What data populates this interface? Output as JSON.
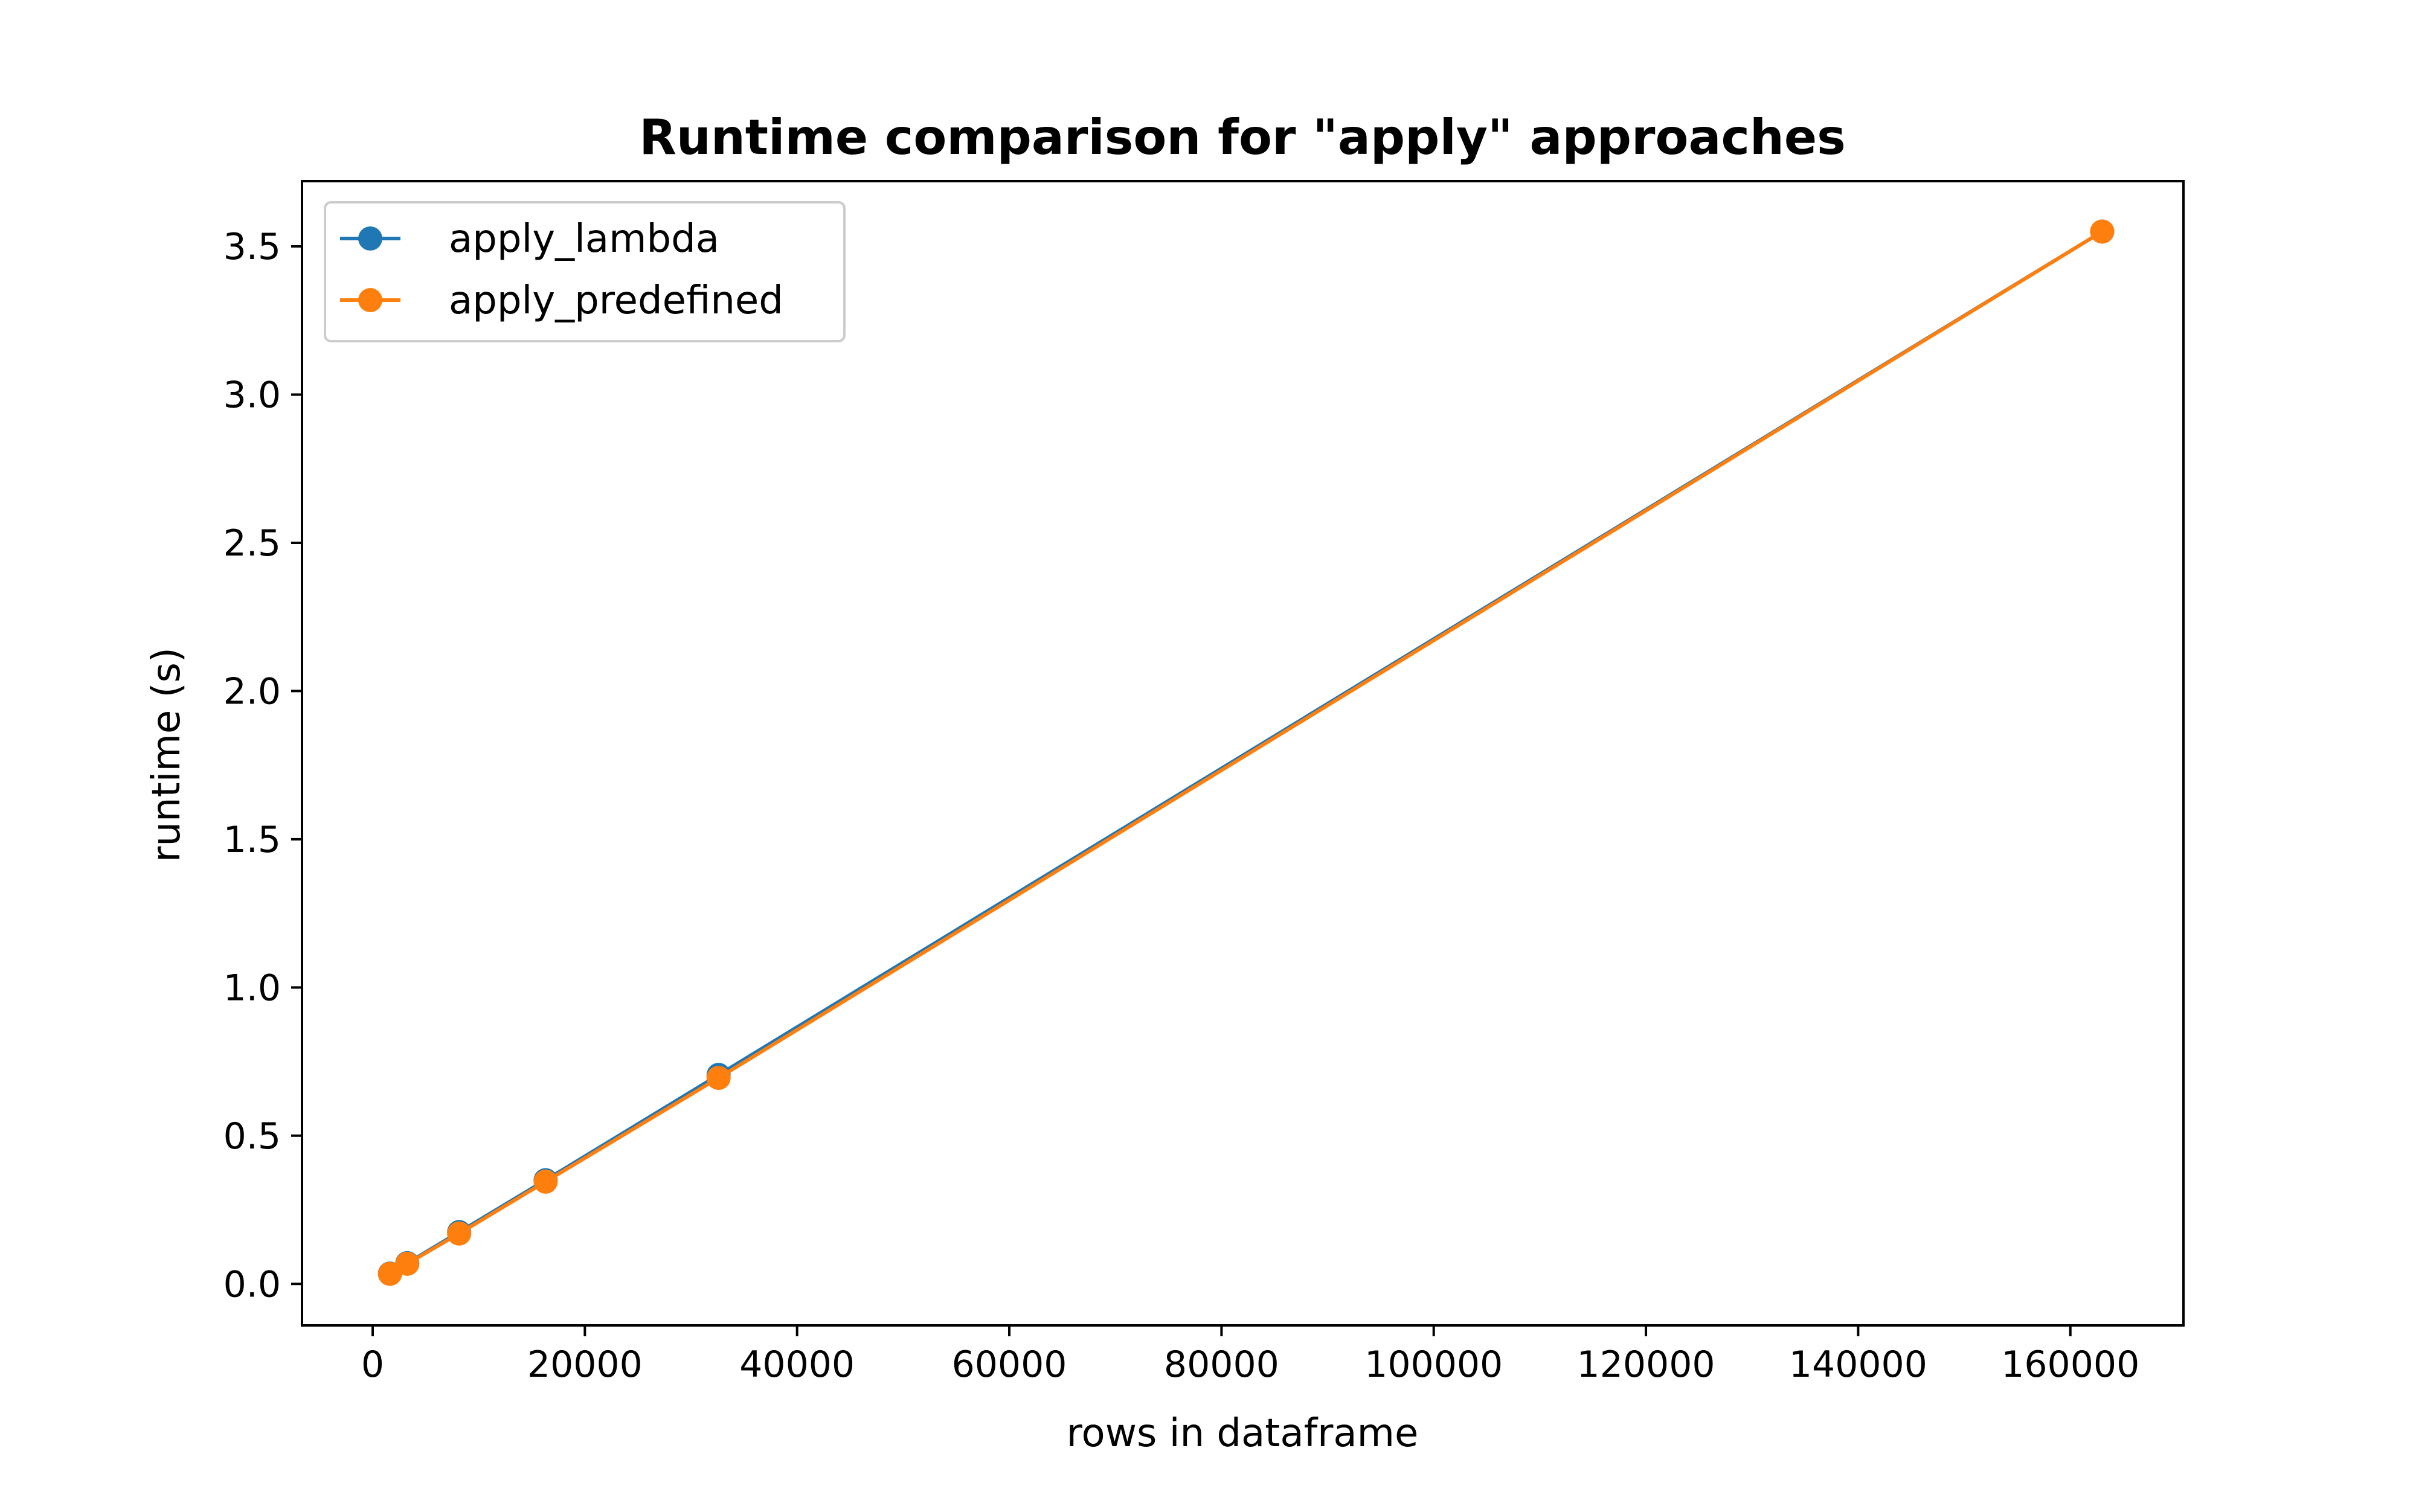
{
  "chart_data": {
    "type": "line",
    "title": "Runtime comparison for \"apply\" approaches",
    "xlabel": "rows in dataframe",
    "ylabel": "runtime (s)",
    "xlim": [
      -6660,
      170660
    ],
    "ylim": [
      -0.14,
      3.72
    ],
    "x_ticks": [
      0,
      20000,
      40000,
      60000,
      80000,
      100000,
      120000,
      140000,
      160000
    ],
    "y_ticks": [
      0.0,
      0.5,
      1.0,
      1.5,
      2.0,
      2.5,
      3.0,
      3.5
    ],
    "x_tick_labels": [
      "0",
      "20000",
      "40000",
      "60000",
      "80000",
      "100000",
      "120000",
      "140000",
      "160000"
    ],
    "y_tick_labels": [
      "0.0",
      "0.5",
      "1.0",
      "1.5",
      "2.0",
      "2.5",
      "3.0",
      "3.5"
    ],
    "grid": false,
    "legend_position": "top-left",
    "x": [
      1630,
      3260,
      8150,
      16300,
      32600,
      163000
    ],
    "series": [
      {
        "name": "apply_lambda",
        "color": "#1f77b4",
        "marker": "circle",
        "values": [
          0.035,
          0.07,
          0.175,
          0.35,
          0.705,
          3.55
        ]
      },
      {
        "name": "apply_predefined",
        "color": "#ff7f0e",
        "marker": "circle",
        "values": [
          0.034,
          0.068,
          0.17,
          0.345,
          0.695,
          3.55
        ]
      }
    ]
  }
}
